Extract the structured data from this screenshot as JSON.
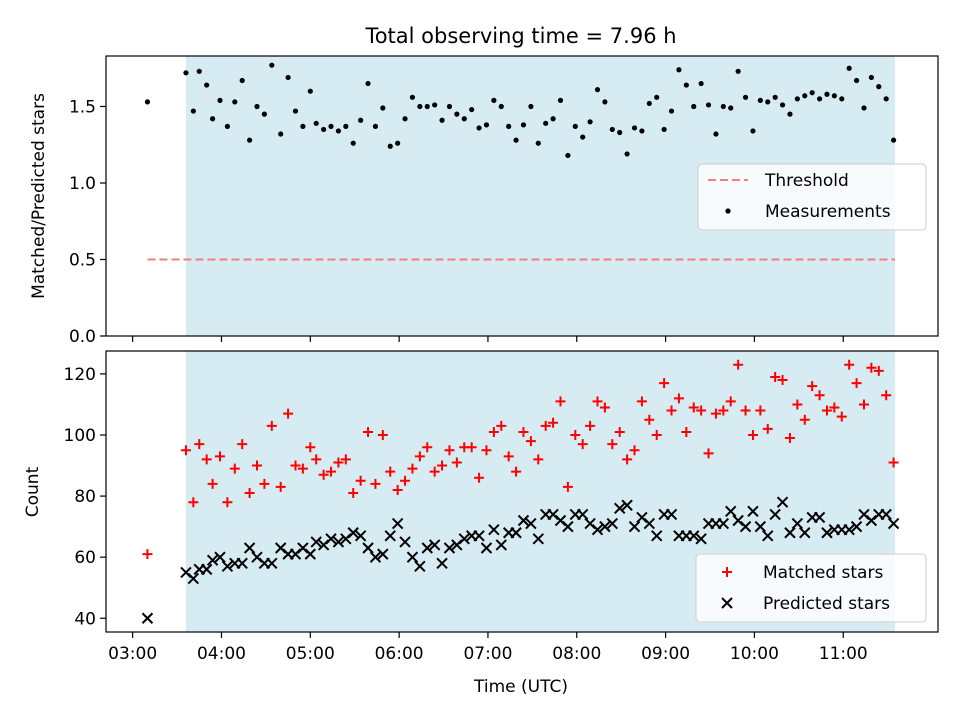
{
  "title": "Total observing time = 7.96 h",
  "colors": {
    "shade": "#add8e6",
    "threshold": "#f08080",
    "measurements": "#000000",
    "matched": "#ff0000",
    "predicted": "#000000"
  },
  "x_ticks": [
    {
      "t": 3.0,
      "label": "03:00"
    },
    {
      "t": 4.0,
      "label": "04:00"
    },
    {
      "t": 5.0,
      "label": "05:00"
    },
    {
      "t": 6.0,
      "label": "06:00"
    },
    {
      "t": 7.0,
      "label": "07:00"
    },
    {
      "t": 8.0,
      "label": "08:00"
    },
    {
      "t": 9.0,
      "label": "09:00"
    },
    {
      "t": 10.0,
      "label": "10:00"
    },
    {
      "t": 11.0,
      "label": "11:00"
    }
  ],
  "xlabel": "Time (UTC)",
  "chart_data": [
    {
      "type": "scatter",
      "panel": "top",
      "ylabel": "Matched/Predicted stars",
      "xlim": [
        "02:42",
        "12:04"
      ],
      "ylim": [
        0,
        1.83
      ],
      "yticks": [
        {
          "v": 0.0,
          "label": "0.0"
        },
        {
          "v": 0.5,
          "label": "0.5"
        },
        {
          "v": 1.0,
          "label": "1.0"
        },
        {
          "v": 1.5,
          "label": "1.5"
        }
      ],
      "shaded_span": [
        "03:36",
        "11:35"
      ],
      "legend": {
        "position": "center-right",
        "entries": [
          "Threshold",
          "Measurements"
        ]
      },
      "threshold": {
        "name": "Threshold",
        "value": 0.5,
        "x_range": [
          "03:10",
          "11:35"
        ]
      },
      "series": [
        {
          "name": "Measurements",
          "marker": "dot",
          "x": [
            "03:10",
            "03:36",
            "03:41",
            "03:45",
            "03:50",
            "03:54",
            "03:59",
            "04:04",
            "04:09",
            "04:14",
            "04:19",
            "04:24",
            "04:29",
            "04:34",
            "04:40",
            "04:45",
            "04:50",
            "04:55",
            "05:00",
            "05:04",
            "05:09",
            "05:14",
            "05:19",
            "05:24",
            "05:29",
            "05:34",
            "05:39",
            "05:44",
            "05:49",
            "05:54",
            "05:59",
            "06:04",
            "06:09",
            "06:14",
            "06:19",
            "06:24",
            "06:29",
            "06:34",
            "06:39",
            "06:44",
            "06:49",
            "06:54",
            "06:59",
            "07:04",
            "07:09",
            "07:14",
            "07:19",
            "07:24",
            "07:29",
            "07:34",
            "07:39",
            "07:44",
            "07:49",
            "07:54",
            "07:59",
            "08:04",
            "08:09",
            "08:14",
            "08:19",
            "08:24",
            "08:29",
            "08:34",
            "08:39",
            "08:44",
            "08:49",
            "08:54",
            "08:59",
            "09:04",
            "09:09",
            "09:14",
            "09:19",
            "09:24",
            "09:29",
            "09:34",
            "09:39",
            "09:44",
            "09:49",
            "09:54",
            "09:59",
            "10:04",
            "10:09",
            "10:14",
            "10:19",
            "10:24",
            "10:29",
            "10:34",
            "10:39",
            "10:44",
            "10:49",
            "10:54",
            "10:59",
            "11:04",
            "11:09",
            "11:14",
            "11:19",
            "11:24",
            "11:29",
            "11:34"
          ],
          "y": [
            1.53,
            1.72,
            1.47,
            1.73,
            1.64,
            1.42,
            1.54,
            1.37,
            1.53,
            1.67,
            1.28,
            1.5,
            1.45,
            1.77,
            1.32,
            1.69,
            1.47,
            1.37,
            1.6,
            1.39,
            1.35,
            1.37,
            1.34,
            1.37,
            1.26,
            1.41,
            1.65,
            1.37,
            1.49,
            1.24,
            1.26,
            1.42,
            1.56,
            1.5,
            1.5,
            1.51,
            1.41,
            1.5,
            1.45,
            1.42,
            1.48,
            1.36,
            1.38,
            1.54,
            1.5,
            1.37,
            1.28,
            1.38,
            1.5,
            1.26,
            1.39,
            1.42,
            1.54,
            1.18,
            1.37,
            1.3,
            1.4,
            1.61,
            1.53,
            1.35,
            1.33,
            1.19,
            1.36,
            1.34,
            1.52,
            1.56,
            1.35,
            1.47,
            1.74,
            1.64,
            1.5,
            1.65,
            1.51,
            1.32,
            1.5,
            1.49,
            1.73,
            1.56,
            1.34,
            1.54,
            1.53,
            1.56,
            1.51,
            1.45,
            1.55,
            1.57,
            1.59,
            1.55,
            1.58,
            1.57,
            1.55,
            1.75,
            1.67,
            1.49,
            1.69,
            1.63,
            1.55,
            1.28
          ]
        }
      ]
    },
    {
      "type": "scatter",
      "panel": "bottom",
      "ylabel": "Count",
      "xlabel": "Time (UTC)",
      "xlim": [
        "02:42",
        "12:04"
      ],
      "ylim": [
        35.5,
        127.5
      ],
      "yticks": [
        {
          "v": 40,
          "label": "40"
        },
        {
          "v": 60,
          "label": "60"
        },
        {
          "v": 80,
          "label": "80"
        },
        {
          "v": 100,
          "label": "100"
        },
        {
          "v": 120,
          "label": "120"
        }
      ],
      "shaded_span": [
        "03:36",
        "11:35"
      ],
      "legend": {
        "position": "lower-right",
        "entries": [
          "Matched stars",
          "Predicted stars"
        ]
      },
      "series": [
        {
          "name": "Matched stars",
          "marker": "plus",
          "x": [
            "03:10",
            "03:36",
            "03:41",
            "03:45",
            "03:50",
            "03:54",
            "03:59",
            "04:04",
            "04:09",
            "04:14",
            "04:19",
            "04:24",
            "04:29",
            "04:34",
            "04:40",
            "04:45",
            "04:50",
            "04:55",
            "05:00",
            "05:04",
            "05:09",
            "05:14",
            "05:19",
            "05:24",
            "05:29",
            "05:34",
            "05:39",
            "05:44",
            "05:49",
            "05:54",
            "05:59",
            "06:04",
            "06:09",
            "06:14",
            "06:19",
            "06:24",
            "06:29",
            "06:34",
            "06:39",
            "06:44",
            "06:49",
            "06:54",
            "06:59",
            "07:04",
            "07:09",
            "07:14",
            "07:19",
            "07:24",
            "07:29",
            "07:34",
            "07:39",
            "07:44",
            "07:49",
            "07:54",
            "07:59",
            "08:04",
            "08:09",
            "08:14",
            "08:19",
            "08:24",
            "08:29",
            "08:34",
            "08:39",
            "08:44",
            "08:49",
            "08:54",
            "08:59",
            "09:04",
            "09:09",
            "09:14",
            "09:19",
            "09:24",
            "09:29",
            "09:34",
            "09:39",
            "09:44",
            "09:49",
            "09:54",
            "09:59",
            "10:04",
            "10:09",
            "10:14",
            "10:19",
            "10:24",
            "10:29",
            "10:34",
            "10:39",
            "10:44",
            "10:49",
            "10:54",
            "10:59",
            "11:04",
            "11:09",
            "11:14",
            "11:19",
            "11:24",
            "11:29",
            "11:34"
          ],
          "y": [
            61,
            95,
            78,
            97,
            92,
            84,
            93,
            78,
            89,
            97,
            81,
            90,
            84,
            103,
            83,
            107,
            90,
            89,
            96,
            92,
            87,
            88,
            91,
            92,
            81,
            85,
            101,
            84,
            100,
            88,
            82,
            85,
            89,
            93,
            96,
            88,
            90,
            95,
            91,
            96,
            96,
            86,
            95,
            101,
            103,
            93,
            88,
            101,
            98,
            92,
            103,
            104,
            111,
            83,
            100,
            97,
            103,
            111,
            109,
            97,
            101,
            92,
            95,
            111,
            105,
            100,
            117,
            108,
            112,
            101,
            109,
            108,
            94,
            107,
            108,
            111,
            123,
            108,
            100,
            108,
            102,
            119,
            118,
            99,
            110,
            105,
            116,
            113,
            108,
            109,
            106,
            123,
            117,
            110,
            122,
            121,
            113,
            91
          ]
        },
        {
          "name": "Predicted stars",
          "marker": "x",
          "x": [
            "03:10",
            "03:36",
            "03:41",
            "03:45",
            "03:50",
            "03:54",
            "03:59",
            "04:04",
            "04:09",
            "04:14",
            "04:19",
            "04:24",
            "04:29",
            "04:34",
            "04:40",
            "04:45",
            "04:50",
            "04:55",
            "05:00",
            "05:04",
            "05:09",
            "05:14",
            "05:19",
            "05:24",
            "05:29",
            "05:34",
            "05:39",
            "05:44",
            "05:49",
            "05:54",
            "05:59",
            "06:04",
            "06:09",
            "06:14",
            "06:19",
            "06:24",
            "06:29",
            "06:34",
            "06:39",
            "06:44",
            "06:49",
            "06:54",
            "06:59",
            "07:04",
            "07:09",
            "07:14",
            "07:19",
            "07:24",
            "07:29",
            "07:34",
            "07:39",
            "07:44",
            "07:49",
            "07:54",
            "07:59",
            "08:04",
            "08:09",
            "08:14",
            "08:19",
            "08:24",
            "08:29",
            "08:34",
            "08:39",
            "08:44",
            "08:49",
            "08:54",
            "08:59",
            "09:04",
            "09:09",
            "09:14",
            "09:19",
            "09:24",
            "09:29",
            "09:34",
            "09:39",
            "09:44",
            "09:49",
            "09:54",
            "09:59",
            "10:04",
            "10:09",
            "10:14",
            "10:19",
            "10:24",
            "10:29",
            "10:34",
            "10:39",
            "10:44",
            "10:49",
            "10:54",
            "10:59",
            "11:04",
            "11:09",
            "11:14",
            "11:19",
            "11:24",
            "11:29",
            "11:34"
          ],
          "y": [
            40,
            55,
            53,
            56,
            56,
            59,
            60,
            57,
            58,
            58,
            63,
            60,
            58,
            58,
            63,
            61,
            61,
            63,
            61,
            65,
            64,
            66,
            65,
            66,
            68,
            67,
            63,
            60,
            61,
            67,
            71,
            65,
            60,
            57,
            63,
            64,
            58,
            63,
            64,
            66,
            67,
            67,
            63,
            69,
            64,
            68,
            68,
            72,
            71,
            66,
            74,
            74,
            72,
            70,
            74,
            74,
            71,
            69,
            70,
            71,
            76,
            77,
            70,
            73,
            71,
            67,
            74,
            74,
            67,
            67,
            67,
            66,
            71,
            71,
            71,
            75,
            72,
            70,
            75,
            70,
            67,
            74,
            78,
            68,
            71,
            68,
            73,
            73,
            68,
            69,
            69,
            69,
            70,
            74,
            72,
            74,
            74,
            71
          ]
        }
      ]
    }
  ]
}
